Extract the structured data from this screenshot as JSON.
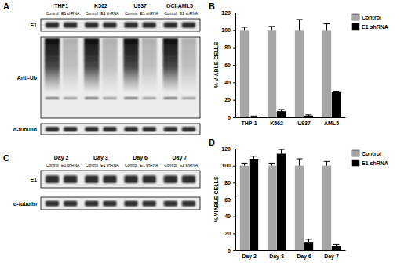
{
  "blots": [
    {
      "title": "A",
      "groups": [
        "THP1",
        "K562",
        "U937",
        "OCI-AML5"
      ],
      "lanes": [
        "Control",
        "E1 shRNA"
      ],
      "rows": [
        "E1",
        "Anti-Ub",
        "α-tubulin"
      ]
    },
    {
      "title": "C",
      "groups": [
        "Day 2",
        "Day 3",
        "Day 6",
        "Day 7"
      ],
      "lanes": [
        "Control",
        "E1 shRNA"
      ],
      "rows": [
        "E1",
        "α-tubulin"
      ]
    }
  ],
  "chart_data": [
    {
      "type": "bar",
      "title": "B",
      "y_label": "% VIABLE CELLS",
      "categories": [
        "THP-1",
        "K562",
        "U937",
        "AML5"
      ],
      "series": [
        {
          "name": "Control",
          "color": "#a6a6a6",
          "values": [
            100,
            100,
            100,
            100
          ],
          "errors": [
            3,
            4,
            12,
            7
          ]
        },
        {
          "name": "E1 shRNA",
          "color": "#000000",
          "values": [
            1,
            7,
            2,
            29
          ],
          "errors": [
            0.5,
            2,
            0.8,
            1
          ]
        }
      ],
      "ylim": [
        0,
        120
      ],
      "yticks": [
        0,
        20,
        40,
        60,
        80,
        100,
        120
      ],
      "grid": false,
      "legend": "top-right"
    },
    {
      "type": "bar",
      "title": "D",
      "y_label": "% VIABLE CELLS",
      "categories": [
        "Day 2",
        "Day 3",
        "Day 6",
        "Day 7"
      ],
      "series": [
        {
          "name": "Control",
          "color": "#a6a6a6",
          "values": [
            100,
            100,
            100,
            100
          ],
          "errors": [
            3,
            3,
            8,
            5
          ]
        },
        {
          "name": "E1 shRNA",
          "color": "#000000",
          "values": [
            108,
            114,
            10,
            5
          ],
          "errors": [
            3,
            5,
            3,
            2
          ]
        }
      ],
      "ylim": [
        0,
        120
      ],
      "yticks": [
        0,
        20,
        40,
        60,
        80,
        100,
        120
      ],
      "grid": false,
      "legend": "top-right"
    }
  ]
}
